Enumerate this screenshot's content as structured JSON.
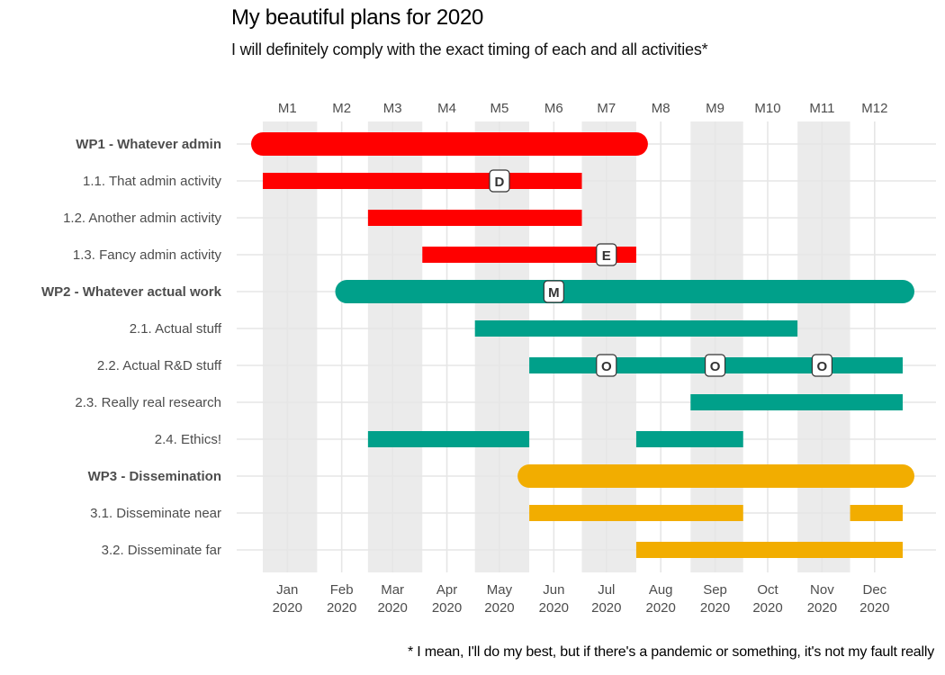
{
  "chart_data": {
    "type": "gantt",
    "title": "My beautiful plans for 2020",
    "subtitle": "I will definitely comply with the exact timing of each and all activities*",
    "caption": "* I mean, I'll do my best, but if there's a pandemic or something, it's not my fault really",
    "x_range": [
      "2020-01-01",
      "2020-12-31"
    ],
    "month_labels_top": [
      "M1",
      "M2",
      "M3",
      "M4",
      "M5",
      "M6",
      "M7",
      "M8",
      "M9",
      "M10",
      "M11",
      "M12"
    ],
    "month_labels_bottom": [
      [
        "Jan",
        "2020"
      ],
      [
        "Feb",
        "2020"
      ],
      [
        "Mar",
        "2020"
      ],
      [
        "Apr",
        "2020"
      ],
      [
        "May",
        "2020"
      ],
      [
        "Jun",
        "2020"
      ],
      [
        "Jul",
        "2020"
      ],
      [
        "Aug",
        "2020"
      ],
      [
        "Sep",
        "2020"
      ],
      [
        "Oct",
        "2020"
      ],
      [
        "Nov",
        "2020"
      ],
      [
        "Dec",
        "2020"
      ]
    ],
    "shaded_months": [
      1,
      3,
      5,
      7,
      9,
      11
    ],
    "grid": true,
    "colors": {
      "WP1": "#ff0000",
      "WP2": "#00a08a",
      "WP3": "#f2ad00",
      "shade": "#ebebeb",
      "grid": "#e6e6e6"
    },
    "rows": [
      {
        "label": "WP1 - Whatever admin",
        "wp": "WP1",
        "is_wp": true,
        "segments": [
          [
            "2020-01-01",
            "2020-08-01"
          ]
        ]
      },
      {
        "label": "1.1. That admin activity",
        "wp": "WP1",
        "is_wp": false,
        "segments": [
          [
            "2020-01-01",
            "2020-07-01"
          ]
        ]
      },
      {
        "label": "1.2. Another admin activity",
        "wp": "WP1",
        "is_wp": false,
        "segments": [
          [
            "2020-03-01",
            "2020-07-01"
          ]
        ]
      },
      {
        "label": "1.3. Fancy admin activity",
        "wp": "WP1",
        "is_wp": false,
        "segments": [
          [
            "2020-04-01",
            "2020-08-01"
          ]
        ]
      },
      {
        "label": "WP2 - Whatever actual work",
        "wp": "WP2",
        "is_wp": true,
        "segments": [
          [
            "2020-02-18",
            "2020-12-31"
          ]
        ]
      },
      {
        "label": "2.1. Actual stuff",
        "wp": "WP2",
        "is_wp": false,
        "segments": [
          [
            "2020-05-01",
            "2020-11-01"
          ]
        ]
      },
      {
        "label": "2.2. Actual R&D stuff",
        "wp": "WP2",
        "is_wp": false,
        "segments": [
          [
            "2020-06-01",
            "2020-12-31"
          ]
        ]
      },
      {
        "label": "2.3. Really real research",
        "wp": "WP2",
        "is_wp": false,
        "segments": [
          [
            "2020-09-01",
            "2020-12-31"
          ]
        ]
      },
      {
        "label": "2.4. Ethics!",
        "wp": "WP2",
        "is_wp": false,
        "segments": [
          [
            "2020-03-01",
            "2020-06-01"
          ],
          [
            "2020-08-01",
            "2020-10-01"
          ]
        ]
      },
      {
        "label": "WP3 - Dissemination",
        "wp": "WP3",
        "is_wp": true,
        "segments": [
          [
            "2020-06-01",
            "2020-12-31"
          ]
        ]
      },
      {
        "label": "3.1. Disseminate near",
        "wp": "WP3",
        "is_wp": false,
        "segments": [
          [
            "2020-06-01",
            "2020-10-01"
          ],
          [
            "2020-12-01",
            "2020-12-31"
          ]
        ]
      },
      {
        "label": "3.2. Disseminate far",
        "wp": "WP3",
        "is_wp": false,
        "segments": [
          [
            "2020-08-01",
            "2020-12-31"
          ]
        ]
      }
    ],
    "markers": [
      {
        "label": "D",
        "row": 1,
        "date": "2020-05-15"
      },
      {
        "label": "E",
        "row": 3,
        "date": "2020-07-15"
      },
      {
        "label": "M",
        "row": 4,
        "date": "2020-06-15"
      },
      {
        "label": "O",
        "row": 6,
        "date": "2020-07-15"
      },
      {
        "label": "O",
        "row": 6,
        "date": "2020-09-15"
      },
      {
        "label": "O",
        "row": 6,
        "date": "2020-11-15"
      }
    ]
  }
}
